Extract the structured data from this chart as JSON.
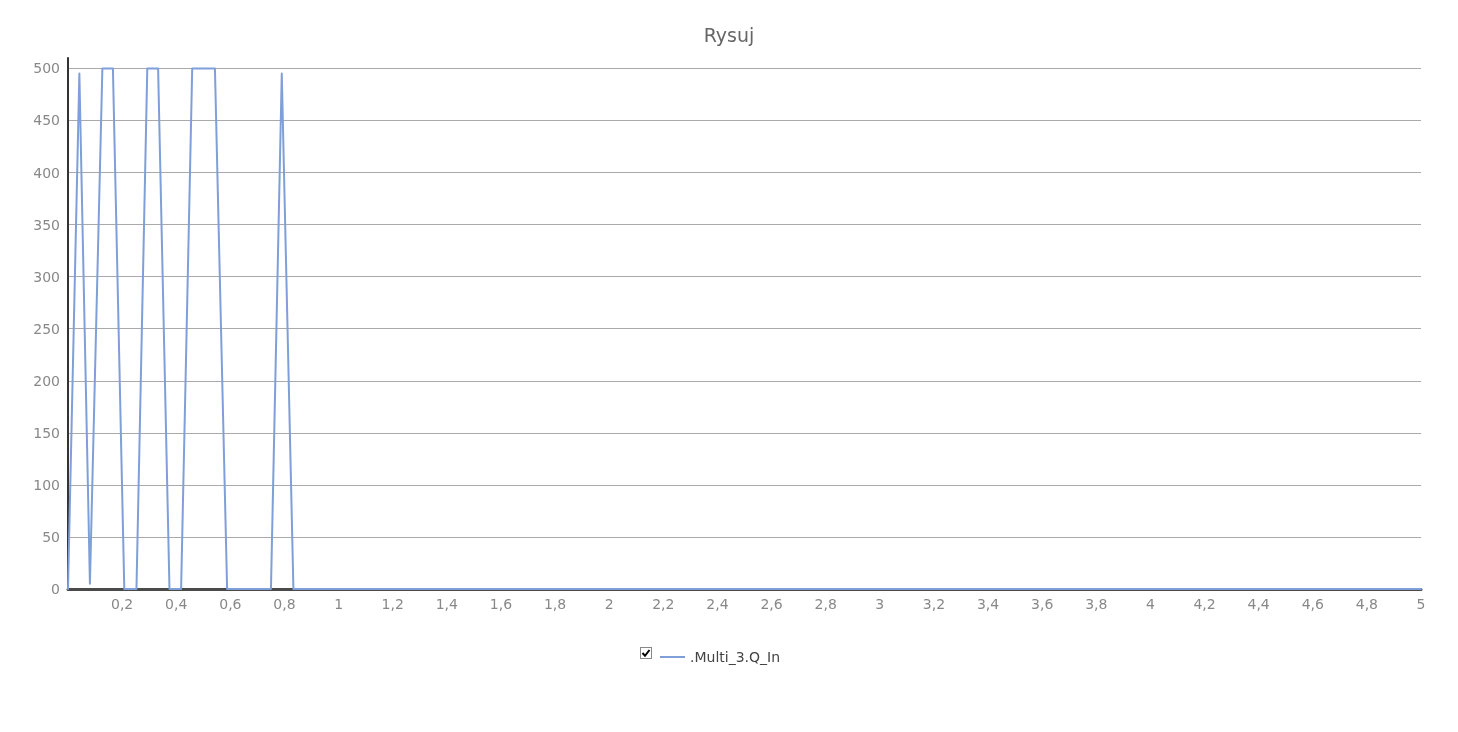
{
  "chart_data": {
    "type": "line",
    "title": "Rysuj",
    "x": [
      0,
      0.042,
      0.081,
      0.127,
      0.166,
      0.208,
      0.253,
      0.293,
      0.333,
      0.375,
      0.418,
      0.459,
      0.543,
      0.588,
      0.75,
      0.79,
      0.833,
      5
    ],
    "series": [
      {
        "name": ".Multi_3.Q_In",
        "color": "#7f9fd8",
        "values": [
          0,
          495,
          5,
          500,
          500,
          0,
          0,
          500,
          500,
          0,
          0,
          500,
          500,
          0,
          0,
          495,
          0,
          0
        ]
      }
    ],
    "xlim": [
      0,
      5
    ],
    "xticks": [
      {
        "value": 0.2,
        "label": "0,2"
      },
      {
        "value": 0.4,
        "label": "0,4"
      },
      {
        "value": 0.6,
        "label": "0,6"
      },
      {
        "value": 0.8,
        "label": "0,8"
      },
      1,
      {
        "value": 1.2,
        "label": "1,2"
      },
      {
        "value": 1.4,
        "label": "1,4"
      },
      {
        "value": 1.6,
        "label": "1,6"
      },
      {
        "value": 1.8,
        "label": "1,8"
      },
      2,
      {
        "value": 2.2,
        "label": "2,2"
      },
      {
        "value": 2.4,
        "label": "2,4"
      },
      {
        "value": 2.6,
        "label": "2,6"
      },
      {
        "value": 2.8,
        "label": "2,8"
      },
      3,
      {
        "value": 3.2,
        "label": "3,2"
      },
      {
        "value": 3.4,
        "label": "3,4"
      },
      {
        "value": 3.6,
        "label": "3,6"
      },
      {
        "value": 3.8,
        "label": "3,8"
      },
      4,
      {
        "value": 4.2,
        "label": "4,2"
      },
      {
        "value": 4.4,
        "label": "4,4"
      },
      {
        "value": 4.6,
        "label": "4,6"
      },
      {
        "value": 4.8,
        "label": "4,8"
      },
      5
    ],
    "ylim": [
      0,
      510
    ],
    "yticks": [
      0,
      50,
      100,
      150,
      200,
      250,
      300,
      350,
      400,
      450,
      500
    ],
    "grid": "y",
    "legend": "bottom",
    "marker": "none",
    "line_style": "solid"
  }
}
